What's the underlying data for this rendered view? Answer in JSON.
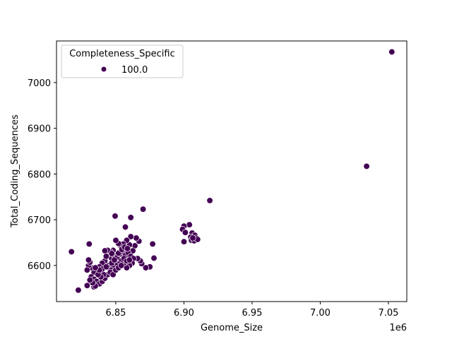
{
  "chart_data": {
    "type": "scatter",
    "title": "",
    "xlabel": "Genome_Size",
    "ylabel": "Total_Coding_Sequences",
    "x_offset_label": "1e6",
    "xlim": [
      6.8065,
      7.0635
    ],
    "ylim": [
      6521,
      7091
    ],
    "x_ticks": [
      6.85,
      6.9,
      6.95,
      7.0,
      7.05
    ],
    "x_tick_labels": [
      "6.85",
      "6.90",
      "6.95",
      "7.00",
      "7.05"
    ],
    "y_ticks": [
      6600,
      6700,
      6800,
      6900,
      7000
    ],
    "y_tick_labels": [
      "6600",
      "6700",
      "6800",
      "6900",
      "7000"
    ],
    "grid": false,
    "legend": {
      "title": "Completeness_Specific",
      "position": "upper left",
      "entries": [
        {
          "label": "100.0",
          "color": "#440154"
        }
      ]
    },
    "marker_color": "#440154",
    "series": [
      {
        "name": "100.0",
        "points": [
          [
            7.0525,
            7067
          ],
          [
            7.034,
            6817
          ],
          [
            6.919,
            6742
          ],
          [
            6.87,
            6723
          ],
          [
            6.8495,
            6708
          ],
          [
            6.861,
            6705
          ],
          [
            6.857,
            6684
          ],
          [
            6.904,
            6689
          ],
          [
            6.9,
            6686
          ],
          [
            6.899,
            6679
          ],
          [
            6.901,
            6672
          ],
          [
            6.9,
            6652
          ],
          [
            6.906,
            6671
          ],
          [
            6.908,
            6666
          ],
          [
            6.905,
            6662
          ],
          [
            6.907,
            6657
          ],
          [
            6.909,
            6660
          ],
          [
            6.9055,
            6655
          ],
          [
            6.9075,
            6654
          ],
          [
            6.91,
            6657
          ],
          [
            6.9065,
            6660
          ],
          [
            6.8175,
            6630
          ],
          [
            6.8305,
            6647
          ],
          [
            6.8225,
            6546
          ],
          [
            6.829,
            6556
          ],
          [
            6.834,
            6553
          ],
          [
            6.877,
            6647
          ],
          [
            6.878,
            6616
          ],
          [
            6.875,
            6597
          ],
          [
            6.872,
            6595
          ],
          [
            6.869,
            6604
          ],
          [
            6.868,
            6610
          ],
          [
            6.866,
            6615
          ],
          [
            6.867,
            6653
          ],
          [
            6.865,
            6660
          ],
          [
            6.861,
            6663
          ],
          [
            6.864,
            6643
          ],
          [
            6.8625,
            6632
          ],
          [
            6.86,
            6645
          ],
          [
            6.858,
            6655
          ],
          [
            6.8555,
            6647
          ],
          [
            6.854,
            6640
          ],
          [
            6.852,
            6648
          ],
          [
            6.85,
            6655
          ],
          [
            6.848,
            6633
          ],
          [
            6.846,
            6630
          ],
          [
            6.844,
            6633
          ],
          [
            6.842,
            6632
          ],
          [
            6.845,
            6620
          ],
          [
            6.847,
            6615
          ],
          [
            6.849,
            6622
          ],
          [
            6.851,
            6618
          ],
          [
            6.853,
            6625
          ],
          [
            6.855,
            6630
          ],
          [
            6.857,
            6622
          ],
          [
            6.859,
            6628
          ],
          [
            6.861,
            6620
          ],
          [
            6.863,
            6615
          ],
          [
            6.862,
            6605
          ],
          [
            6.86,
            6600
          ],
          [
            6.858,
            6595
          ],
          [
            6.856,
            6605
          ],
          [
            6.854,
            6610
          ],
          [
            6.852,
            6603
          ],
          [
            6.85,
            6600
          ],
          [
            6.848,
            6595
          ],
          [
            6.846,
            6590
          ],
          [
            6.844,
            6600
          ],
          [
            6.842,
            6610
          ],
          [
            6.84,
            6605
          ],
          [
            6.838,
            6597
          ],
          [
            6.836,
            6590
          ],
          [
            6.834,
            6585
          ],
          [
            6.832,
            6595
          ],
          [
            6.83,
            6600
          ],
          [
            6.831,
            6607
          ],
          [
            6.83,
            6612
          ],
          [
            6.829,
            6590
          ],
          [
            6.832,
            6575
          ],
          [
            6.834,
            6570
          ],
          [
            6.836,
            6565
          ],
          [
            6.838,
            6560
          ],
          [
            6.84,
            6565
          ],
          [
            6.842,
            6572
          ],
          [
            6.844,
            6580
          ],
          [
            6.846,
            6585
          ],
          [
            6.848,
            6580
          ],
          [
            6.85,
            6590
          ],
          [
            6.852,
            6595
          ],
          [
            6.854,
            6600
          ],
          [
            6.841,
            6580
          ],
          [
            6.839,
            6575
          ],
          [
            6.837,
            6580
          ],
          [
            6.835,
            6555
          ],
          [
            6.833,
            6562
          ],
          [
            6.831,
            6568
          ],
          [
            6.84,
            6592
          ],
          [
            6.843,
            6597
          ],
          [
            6.847,
            6605
          ],
          [
            6.849,
            6612
          ],
          [
            6.856,
            6615
          ],
          [
            6.858,
            6610
          ],
          [
            6.86,
            6612
          ],
          [
            6.852,
            6627
          ],
          [
            6.8545,
            6635
          ],
          [
            6.8565,
            6640
          ],
          [
            6.8585,
            6637
          ],
          [
            6.847,
            6626
          ],
          [
            6.843,
            6620
          ],
          [
            6.838,
            6590
          ],
          [
            6.835,
            6595
          ]
        ]
      }
    ]
  }
}
